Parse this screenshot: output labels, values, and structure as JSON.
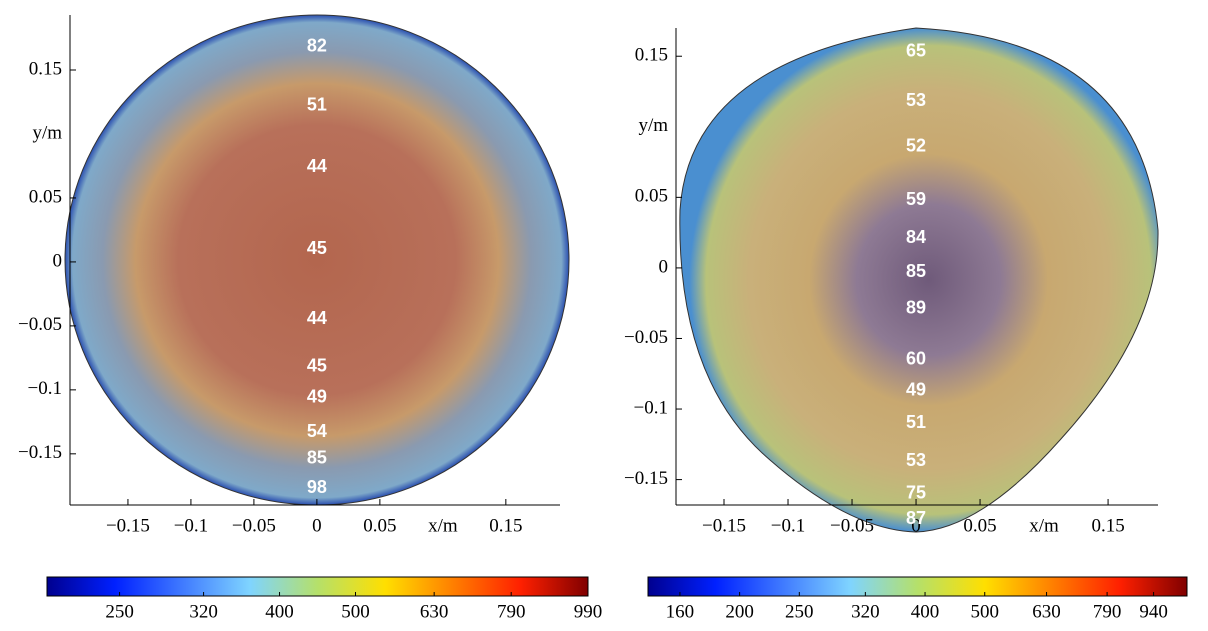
{
  "chart_data": [
    {
      "type": "section",
      "xlabel": "x/m",
      "ylabel": "y/m",
      "xlim": [
        -0.196,
        0.193
      ],
      "ylim": [
        -0.19,
        0.193
      ],
      "xticks": [
        {
          "value": -0.15,
          "label": "−0.15"
        },
        {
          "value": -0.1,
          "label": "−0.1"
        },
        {
          "value": -0.05,
          "label": "−0.05"
        },
        0,
        0.05,
        0.15
      ],
      "yticks": [
        0.15,
        0.05,
        0,
        {
          "value": -0.05,
          "label": "−0.05"
        },
        {
          "value": -0.1,
          "label": "−0.1"
        },
        {
          "value": -0.15,
          "label": "−0.15"
        }
      ],
      "y": [
        0.168,
        0.122,
        0.074,
        0.01,
        -0.045,
        -0.082,
        -0.106,
        -0.133,
        -0.154,
        -0.177
      ],
      "values": [
        82,
        51,
        44,
        45,
        44,
        45,
        49,
        54,
        85,
        98
      ],
      "log_colorbar": true,
      "clim": [
        202,
        990
      ],
      "cticks": [
        250,
        320,
        400,
        500,
        630,
        790,
        990
      ]
    },
    {
      "type": "section",
      "xlabel": "x/m",
      "ylabel": "y/m",
      "xlim": [
        -0.1875,
        0.189
      ],
      "ylim": [
        -0.168,
        0.17
      ],
      "xticks": [
        {
          "value": -0.15,
          "label": "−0.15"
        },
        {
          "value": -0.1,
          "label": "−0.1"
        },
        {
          "value": -0.05,
          "label": "−0.05"
        },
        0,
        0.05,
        0.15
      ],
      "yticks": [
        0.15,
        0.05,
        0,
        {
          "value": -0.05,
          "label": "−0.05"
        },
        {
          "value": -0.1,
          "label": "−0.1"
        },
        {
          "value": -0.15,
          "label": "−0.15"
        }
      ],
      "y": [
        0.153,
        0.118,
        0.086,
        0.048,
        0.021,
        -0.003,
        -0.029,
        -0.065,
        -0.087,
        -0.11,
        -0.137,
        -0.16,
        -0.178
      ],
      "values": [
        65,
        53,
        52,
        59,
        84,
        85,
        89,
        60,
        49,
        51,
        53,
        75,
        87
      ],
      "log_colorbar": true,
      "clim": [
        142,
        1065
      ],
      "cticks": [
        160,
        200,
        250,
        320,
        400,
        500,
        630,
        790,
        940
      ]
    }
  ]
}
